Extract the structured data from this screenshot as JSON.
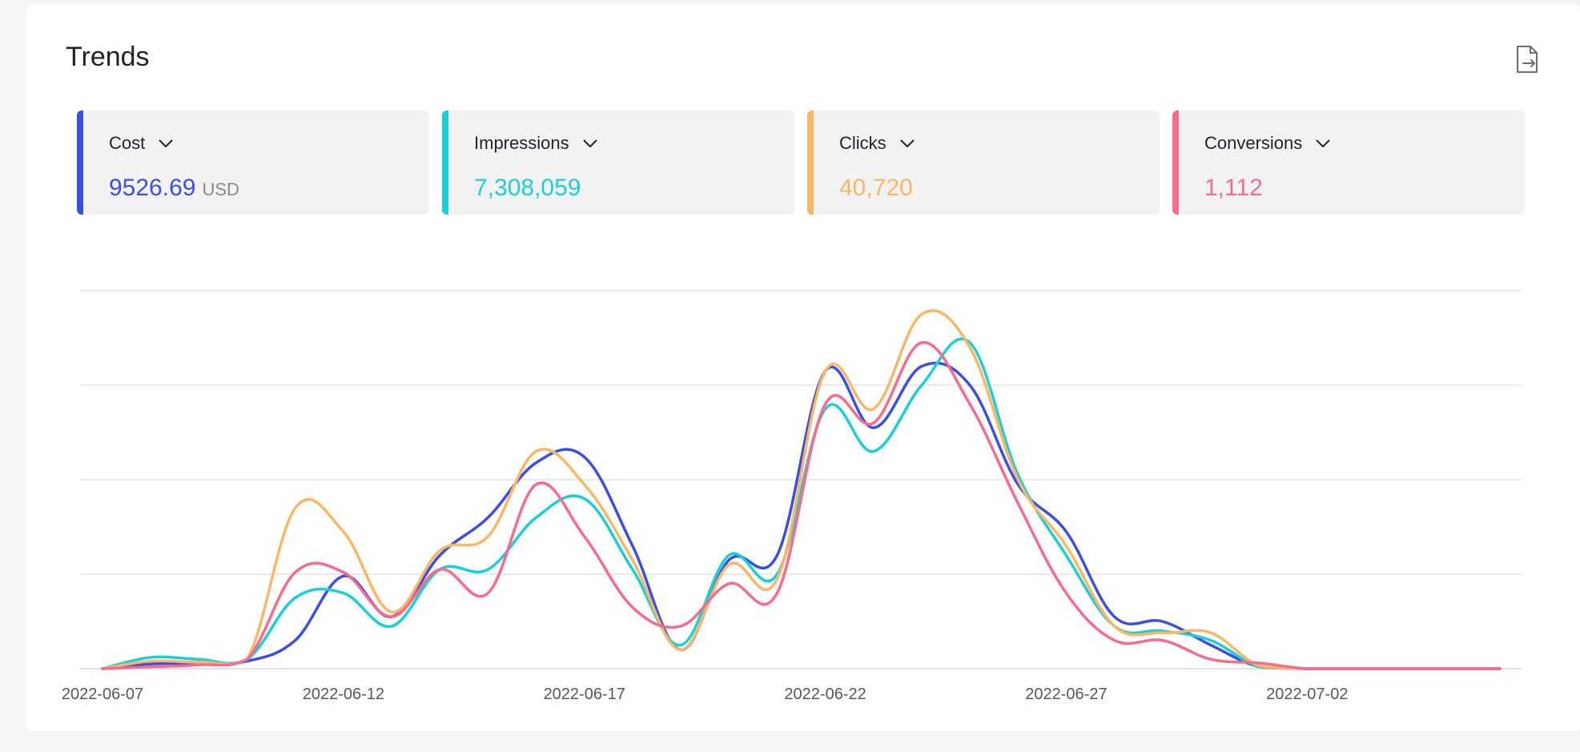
{
  "header": {
    "title": "Trends",
    "export_icon": "file-export-icon"
  },
  "metrics": [
    {
      "label": "Cost",
      "value": "9526.69",
      "unit": "USD",
      "color": "#3b4fe4"
    },
    {
      "label": "Impressions",
      "value": "7,308,059",
      "unit": "",
      "color": "#1ccfd6"
    },
    {
      "label": "Clicks",
      "value": "40,720",
      "unit": "",
      "color": "#fbb767"
    },
    {
      "label": "Conversions",
      "value": "1,112",
      "unit": "",
      "color": "#f66c8c"
    }
  ],
  "chart_data": {
    "type": "line",
    "x": [
      "2022-06-07",
      "2022-06-08",
      "2022-06-09",
      "2022-06-10",
      "2022-06-11",
      "2022-06-12",
      "2022-06-13",
      "2022-06-14",
      "2022-06-15",
      "2022-06-16",
      "2022-06-17",
      "2022-06-18",
      "2022-06-19",
      "2022-06-20",
      "2022-06-21",
      "2022-06-22",
      "2022-06-23",
      "2022-06-24",
      "2022-06-25",
      "2022-06-26",
      "2022-06-27",
      "2022-06-28",
      "2022-06-29",
      "2022-06-30",
      "2022-07-01",
      "2022-07-02",
      "2022-07-03",
      "2022-07-04",
      "2022-07-05",
      "2022-07-06"
    ],
    "x_tick_labels": [
      "2022-06-07",
      "2022-06-12",
      "2022-06-17",
      "2022-06-22",
      "2022-06-27",
      "2022-07-02"
    ],
    "y_axis_labels_visible": false,
    "grid": true,
    "ylim": [
      0,
      4
    ],
    "series": [
      {
        "name": "Cost",
        "color": "#3b4fe4",
        "values": [
          0,
          0.05,
          0.06,
          0.08,
          0.3,
          0.98,
          0.55,
          1.2,
          1.6,
          2.18,
          2.24,
          1.3,
          0.2,
          1.15,
          1.2,
          3.15,
          2.55,
          3.2,
          3.0,
          1.95,
          1.45,
          0.55,
          0.5,
          0.25,
          0.02,
          0,
          0,
          0,
          0,
          0
        ]
      },
      {
        "name": "Impressions",
        "color": "#1ccfd6",
        "values": [
          0,
          0.12,
          0.1,
          0.1,
          0.75,
          0.8,
          0.45,
          1.05,
          1.05,
          1.6,
          1.8,
          1.05,
          0.25,
          1.2,
          1.0,
          2.75,
          2.3,
          3.0,
          3.45,
          2.05,
          1.2,
          0.45,
          0.4,
          0.3,
          0.02,
          0,
          0,
          0,
          0,
          0
        ]
      },
      {
        "name": "Clicks",
        "color": "#fbb767",
        "values": [
          0,
          0.08,
          0.07,
          0.1,
          1.7,
          1.45,
          0.6,
          1.25,
          1.4,
          2.3,
          1.95,
          1.15,
          0.2,
          1.1,
          0.95,
          3.15,
          2.75,
          3.75,
          3.4,
          2.0,
          1.3,
          0.45,
          0.38,
          0.38,
          0.03,
          0,
          0,
          0,
          0,
          0
        ]
      },
      {
        "name": "Conversions",
        "color": "#f66c8c",
        "values": [
          0,
          0.02,
          0.04,
          0.1,
          1.02,
          1.02,
          0.55,
          1.05,
          0.8,
          1.95,
          1.4,
          0.65,
          0.45,
          0.9,
          0.8,
          2.8,
          2.6,
          3.45,
          2.8,
          1.75,
          0.8,
          0.3,
          0.3,
          0.1,
          0.06,
          0,
          0,
          0,
          0,
          0
        ]
      }
    ]
  }
}
